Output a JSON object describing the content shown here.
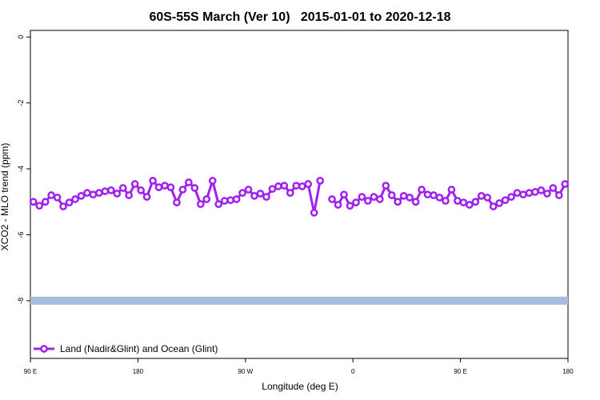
{
  "chart_data": {
    "type": "line",
    "title": "60S-55S March (Ver 10)   2015-01-01 to 2020-12-18",
    "x_label": "Longitude (deg E)",
    "y_label": "XCO2 - MLO trend (ppm)",
    "xlim": [
      90,
      540
    ],
    "ylim": [
      -9.75,
      0.2
    ],
    "xticks": [
      {
        "value": 90,
        "label": "90 E"
      },
      {
        "value": 180,
        "label": "180"
      },
      {
        "value": 270,
        "label": "90 W"
      },
      {
        "value": 360,
        "label": "0"
      },
      {
        "value": 450,
        "label": "90 E"
      },
      {
        "value": 540,
        "label": "180"
      }
    ],
    "yticks": [
      0,
      -2,
      -4,
      -6,
      -8
    ],
    "legend": "bottom-left",
    "reference_line": {
      "value": -8,
      "color": "#a7bde0"
    },
    "x": [
      92.5,
      97.5,
      102.5,
      107.5,
      112.5,
      117.5,
      122.5,
      127.5,
      132.5,
      137.5,
      142.5,
      147.5,
      152.5,
      157.5,
      162.5,
      167.5,
      172.5,
      177.5,
      182.5,
      187.5,
      192.5,
      197.5,
      202.5,
      207.5,
      212.5,
      217.5,
      222.5,
      227.5,
      232.5,
      237.5,
      242.5,
      247.5,
      252.5,
      257.5,
      262.5,
      267.5,
      272.5,
      277.5,
      282.5,
      287.5,
      292.5,
      297.5,
      302.5,
      307.5,
      312.5,
      317.5,
      322.5,
      327.5,
      332.5,
      337.5,
      342.5,
      347.5,
      352.5,
      357.5,
      362.5,
      367.5,
      372.5,
      377.5,
      382.5,
      387.5,
      392.5,
      397.5,
      402.5,
      407.5,
      412.5,
      417.5,
      422.5,
      427.5,
      432.5,
      437.5,
      442.5,
      447.5,
      452.5,
      457.5,
      462.5,
      467.5,
      472.5,
      477.5,
      482.5,
      487.5,
      492.5,
      497.5,
      502.5,
      507.5,
      512.5,
      517.5,
      522.5,
      527.5,
      532.5,
      537.5
    ],
    "series": [
      {
        "name": "Land (Nadir&Glint) and Ocean (Glint)",
        "color": "#a020f0",
        "values": [
          -5.0,
          -5.12,
          -5.0,
          -4.8,
          -4.87,
          -5.14,
          -5.02,
          -4.92,
          -4.82,
          -4.73,
          -4.78,
          -4.73,
          -4.68,
          -4.65,
          -4.75,
          -4.58,
          -4.8,
          -4.46,
          -4.65,
          -4.85,
          -4.36,
          -4.56,
          -4.51,
          -4.56,
          -5.02,
          -4.63,
          -4.41,
          -4.58,
          -5.07,
          -4.92,
          -4.36,
          -5.07,
          -4.97,
          -4.95,
          -4.92,
          -4.73,
          -4.63,
          -4.82,
          -4.75,
          -4.85,
          -4.61,
          -4.53,
          -4.51,
          -4.73,
          -4.51,
          -4.53,
          -4.46,
          -5.33,
          -4.36,
          null,
          -4.92,
          -5.09,
          -4.78,
          -5.12,
          -5.02,
          -4.85,
          -4.97,
          -4.85,
          -4.92,
          -4.51,
          -4.8,
          -5.0,
          -4.82,
          -4.87,
          -5.0,
          -4.63,
          -4.78,
          -4.8,
          -4.87,
          -4.97,
          -4.63,
          -4.97,
          -5.02,
          -5.09,
          -5.0,
          -4.82,
          -4.87,
          -5.14,
          -5.04,
          -4.95,
          -4.85,
          -4.73,
          -4.78,
          -4.73,
          -4.7,
          -4.65,
          -4.75,
          -4.58,
          -4.8,
          -4.46
        ]
      }
    ]
  }
}
